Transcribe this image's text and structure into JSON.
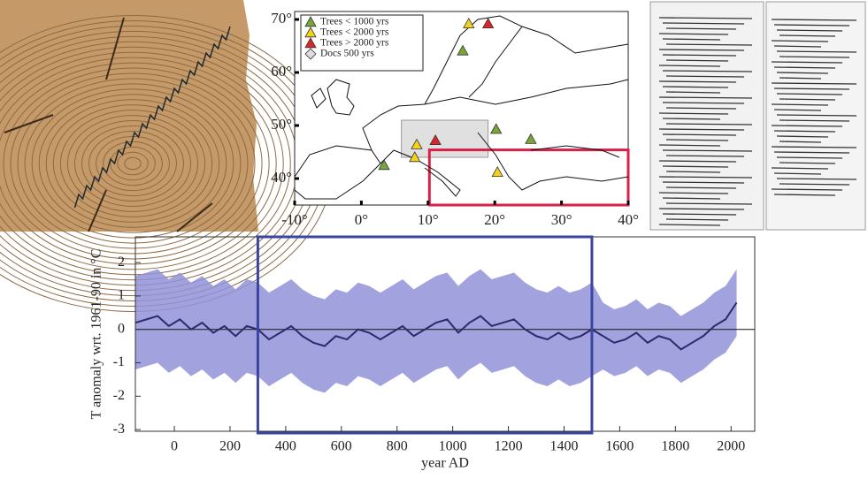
{
  "chart_data": {
    "type": "line",
    "x_label": "year AD",
    "y_label": "T anomaly wrt. 1961-90 in °C",
    "x": [
      -140,
      -100,
      -60,
      -20,
      20,
      60,
      100,
      140,
      180,
      220,
      260,
      300,
      340,
      380,
      420,
      460,
      500,
      540,
      580,
      620,
      660,
      700,
      740,
      780,
      820,
      860,
      900,
      940,
      980,
      1020,
      1060,
      1100,
      1140,
      1180,
      1220,
      1260,
      1300,
      1340,
      1380,
      1420,
      1460,
      1500,
      1540,
      1580,
      1620,
      1660,
      1700,
      1740,
      1780,
      1820,
      1860,
      1900,
      1940,
      1980,
      2020
    ],
    "values": [
      0.2,
      0.3,
      0.4,
      0.1,
      0.3,
      0.0,
      0.2,
      -0.1,
      0.1,
      -0.2,
      0.1,
      0.0,
      -0.3,
      -0.1,
      0.1,
      -0.2,
      -0.4,
      -0.5,
      -0.2,
      -0.3,
      0.0,
      -0.1,
      -0.3,
      -0.1,
      0.1,
      -0.2,
      0.0,
      0.2,
      0.3,
      -0.1,
      0.2,
      0.4,
      0.1,
      0.2,
      0.3,
      0.0,
      -0.2,
      -0.3,
      -0.1,
      -0.3,
      -0.2,
      0.0,
      -0.2,
      -0.4,
      -0.3,
      -0.1,
      -0.4,
      -0.2,
      -0.3,
      -0.6,
      -0.4,
      -0.2,
      0.1,
      0.3,
      0.8
    ],
    "upper": [
      1.6,
      1.7,
      1.8,
      1.5,
      1.7,
      1.4,
      1.6,
      1.3,
      1.5,
      1.2,
      1.5,
      1.4,
      1.1,
      1.3,
      1.5,
      1.2,
      1.0,
      0.9,
      1.2,
      1.1,
      1.4,
      1.3,
      1.1,
      1.3,
      1.5,
      1.2,
      1.4,
      1.6,
      1.7,
      1.3,
      1.6,
      1.8,
      1.5,
      1.6,
      1.7,
      1.4,
      1.2,
      1.1,
      1.3,
      1.1,
      1.2,
      1.4,
      0.8,
      0.6,
      0.7,
      0.9,
      0.6,
      0.8,
      0.7,
      0.4,
      0.6,
      0.8,
      1.1,
      1.3,
      1.8
    ],
    "lower": [
      -1.2,
      -1.1,
      -1.0,
      -1.3,
      -1.1,
      -1.4,
      -1.2,
      -1.5,
      -1.3,
      -1.6,
      -1.3,
      -1.4,
      -1.7,
      -1.5,
      -1.3,
      -1.6,
      -1.8,
      -1.9,
      -1.6,
      -1.7,
      -1.4,
      -1.5,
      -1.7,
      -1.5,
      -1.3,
      -1.6,
      -1.4,
      -1.2,
      -1.1,
      -1.5,
      -1.2,
      -1.0,
      -1.3,
      -1.2,
      -1.1,
      -1.4,
      -1.6,
      -1.7,
      -1.5,
      -1.7,
      -1.6,
      -1.4,
      -1.2,
      -1.4,
      -1.3,
      -1.1,
      -1.4,
      -1.2,
      -1.3,
      -1.6,
      -1.4,
      -1.2,
      -0.9,
      -0.7,
      -0.2
    ],
    "color": "#2b2a6e",
    "band_color": "#9292d8",
    "xlim": [
      -140,
      2085
    ],
    "ylim": [
      -3.05,
      2.77
    ],
    "xticks": [
      0,
      200,
      400,
      600,
      800,
      1000,
      1200,
      1400,
      1600,
      1800,
      2000
    ],
    "yticks": [
      -3,
      -2,
      -1,
      0,
      1,
      2
    ],
    "highlight": [
      300,
      1500
    ],
    "highlight_color": "#3a46a0",
    "zero_line": true
  },
  "map": {
    "xlim": [
      -10,
      40
    ],
    "ylim": [
      35,
      71.5
    ],
    "xticks": [
      {
        "value": -10,
        "label": "-10°"
      },
      {
        "value": 0,
        "label": "0°"
      },
      {
        "value": 10,
        "label": "10°"
      },
      {
        "value": 20,
        "label": "20°"
      },
      {
        "value": 30,
        "label": "30°"
      },
      {
        "value": 40,
        "label": "40°"
      }
    ],
    "yticks": [
      {
        "value": 40,
        "label": "40°"
      },
      {
        "value": 50,
        "label": "50°"
      },
      {
        "value": 60,
        "label": "60°"
      },
      {
        "value": 70,
        "label": "70°"
      }
    ],
    "legend": [
      {
        "label": "Trees < 1000 yrs",
        "color": "#7aa53a",
        "shape": "triangle"
      },
      {
        "label": "Trees < 2000 yrs",
        "color": "#f2d21a",
        "shape": "triangle"
      },
      {
        "label": "Trees > 2000 yrs",
        "color": "#d9262a",
        "shape": "triangle"
      },
      {
        "label": "Docs 500 yrs",
        "color": "#dddddd",
        "shape": "diamond"
      }
    ],
    "sites": [
      {
        "lon": 3.4,
        "lat": 42.5,
        "group": 0
      },
      {
        "lon": 8.3,
        "lat": 46.4,
        "group": 1
      },
      {
        "lon": 8.0,
        "lat": 44.0,
        "group": 1
      },
      {
        "lon": 11.1,
        "lat": 47.2,
        "group": 2
      },
      {
        "lon": 20.2,
        "lat": 49.3,
        "group": 0
      },
      {
        "lon": 25.4,
        "lat": 47.4,
        "group": 0
      },
      {
        "lon": 20.4,
        "lat": 41.2,
        "group": 1
      },
      {
        "lon": 15.2,
        "lat": 64.1,
        "group": 0
      },
      {
        "lon": 16.1,
        "lat": 69.2,
        "group": 1
      },
      {
        "lon": 19.0,
        "lat": 69.2,
        "group": 2
      }
    ],
    "boxes": [
      {
        "lon": [
          6,
          19
        ],
        "lat": [
          44,
          51
        ],
        "fill": "#e0e0e0",
        "stroke": "#999999"
      },
      {
        "lon": [
          10.2,
          40
        ],
        "lat": [
          35,
          45.4
        ],
        "fill": "none",
        "stroke": "#d8214a"
      }
    ]
  }
}
